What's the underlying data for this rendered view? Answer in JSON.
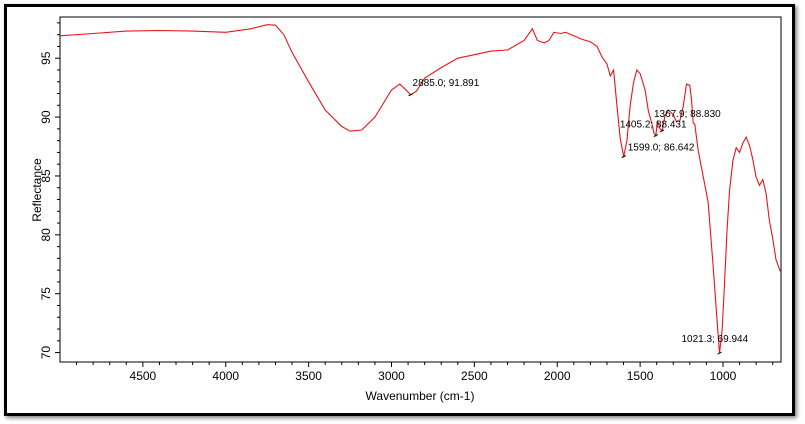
{
  "chart_data": {
    "type": "line",
    "xlabel": "Wavenumber (cm-1)",
    "ylabel": "Reflectance",
    "xlim": [
      5000,
      650
    ],
    "ylim": [
      69.2,
      98.5
    ],
    "x_reversed": true,
    "xticks": [
      4500,
      4000,
      3500,
      3000,
      2500,
      2000,
      1500,
      1000
    ],
    "yticks": [
      70,
      75,
      80,
      85,
      90,
      95
    ],
    "line_color": "#e8141b",
    "series": [
      {
        "points": [
          [
            5000,
            96.9
          ],
          [
            4800,
            97.1
          ],
          [
            4600,
            97.3
          ],
          [
            4400,
            97.35
          ],
          [
            4200,
            97.3
          ],
          [
            4000,
            97.2
          ],
          [
            3850,
            97.5
          ],
          [
            3750,
            97.85
          ],
          [
            3700,
            97.8
          ],
          [
            3650,
            97.0
          ],
          [
            3600,
            95.5
          ],
          [
            3500,
            93.0
          ],
          [
            3400,
            90.6
          ],
          [
            3300,
            89.2
          ],
          [
            3250,
            88.8
          ],
          [
            3180,
            88.9
          ],
          [
            3100,
            90.0
          ],
          [
            3000,
            92.3
          ],
          [
            2950,
            92.8
          ],
          [
            2920,
            92.4
          ],
          [
            2885,
            91.891
          ],
          [
            2850,
            92.2
          ],
          [
            2800,
            93.3
          ],
          [
            2700,
            94.2
          ],
          [
            2600,
            95.0
          ],
          [
            2500,
            95.3
          ],
          [
            2400,
            95.6
          ],
          [
            2300,
            95.7
          ],
          [
            2200,
            96.5
          ],
          [
            2150,
            97.5
          ],
          [
            2120,
            96.5
          ],
          [
            2080,
            96.3
          ],
          [
            2050,
            96.5
          ],
          [
            2020,
            97.2
          ],
          [
            1980,
            97.1
          ],
          [
            1950,
            97.2
          ],
          [
            1900,
            96.9
          ],
          [
            1850,
            96.6
          ],
          [
            1800,
            96.4
          ],
          [
            1760,
            96.0
          ],
          [
            1730,
            95.1
          ],
          [
            1700,
            94.5
          ],
          [
            1680,
            93.5
          ],
          [
            1660,
            94.0
          ],
          [
            1640,
            91.0
          ],
          [
            1620,
            88.2
          ],
          [
            1599,
            86.642
          ],
          [
            1580,
            88.0
          ],
          [
            1560,
            91.0
          ],
          [
            1540,
            92.9
          ],
          [
            1520,
            94.0
          ],
          [
            1500,
            93.7
          ],
          [
            1470,
            92.3
          ],
          [
            1450,
            90.5
          ],
          [
            1430,
            89.5
          ],
          [
            1415,
            88.6
          ],
          [
            1405.2,
            88.431
          ],
          [
            1395,
            89.7
          ],
          [
            1380,
            89.0
          ],
          [
            1367.9,
            88.83
          ],
          [
            1350,
            90.1
          ],
          [
            1330,
            90.6
          ],
          [
            1300,
            90.2
          ],
          [
            1280,
            89.6
          ],
          [
            1260,
            89.7
          ],
          [
            1240,
            90.9
          ],
          [
            1220,
            92.8
          ],
          [
            1200,
            92.7
          ],
          [
            1190,
            91.5
          ],
          [
            1180,
            89.5
          ],
          [
            1170,
            89.4
          ],
          [
            1150,
            87.2
          ],
          [
            1120,
            85.0
          ],
          [
            1090,
            82.8
          ],
          [
            1060,
            77.5
          ],
          [
            1040,
            73.5
          ],
          [
            1021.3,
            69.944
          ],
          [
            1005,
            72.0
          ],
          [
            990,
            76.0
          ],
          [
            975,
            80.5
          ],
          [
            960,
            83.8
          ],
          [
            940,
            86.3
          ],
          [
            920,
            87.4
          ],
          [
            900,
            87.0
          ],
          [
            880,
            87.8
          ],
          [
            860,
            88.3
          ],
          [
            840,
            87.6
          ],
          [
            820,
            86.4
          ],
          [
            800,
            84.9
          ],
          [
            780,
            84.2
          ],
          [
            760,
            84.7
          ],
          [
            740,
            83.5
          ],
          [
            720,
            81.2
          ],
          [
            700,
            79.7
          ],
          [
            680,
            77.9
          ],
          [
            655,
            76.9
          ]
        ]
      }
    ],
    "annotations": [
      {
        "x": 2885.0,
        "y": 91.891,
        "text": "2885.0; 91.891"
      },
      {
        "x": 1367.9,
        "y": 88.83,
        "text": "1367.9; 88.830"
      },
      {
        "x": 1405.2,
        "y": 88.431,
        "text": "1405.2; 88.431"
      },
      {
        "x": 1599.0,
        "y": 86.642,
        "text": "1599.0; 86.642"
      },
      {
        "x": 1021.3,
        "y": 69.944,
        "text": "1021.3; 69.944"
      }
    ]
  }
}
